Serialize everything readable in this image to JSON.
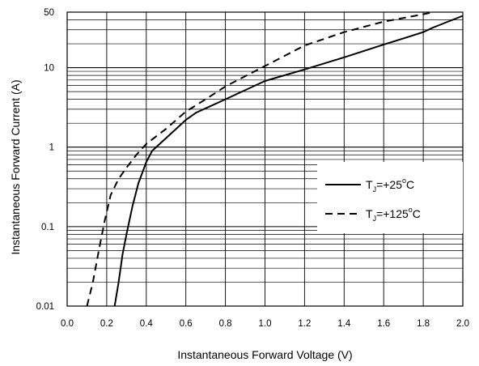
{
  "chart_data": {
    "type": "line",
    "xlabel": "Instantaneous Forward Voltage (V)",
    "ylabel": "Instantaneous Forward Current (A)",
    "xlim": [
      0.0,
      2.0
    ],
    "ylim": [
      0.01,
      50
    ],
    "yscale": "log",
    "grid": true,
    "legend_position": "right",
    "x_ticks": [
      "0.0",
      "0.2",
      "0.4",
      "0.6",
      "0.8",
      "1.0",
      "1.2",
      "1.4",
      "1.6",
      "1.8",
      "2.0"
    ],
    "y_ticks": [
      {
        "value": 0.01,
        "label": "0.01"
      },
      {
        "value": 0.1,
        "label": "0.1"
      },
      {
        "value": 1,
        "label": "1"
      },
      {
        "value": 10,
        "label": "10"
      },
      {
        "value": 50,
        "label": "50"
      }
    ],
    "series": [
      {
        "name": "TJ=+25°C",
        "legend": {
          "main": "T",
          "sub": "J",
          "mid": "=+25",
          "sup": "o",
          "end": "C"
        },
        "style": "solid",
        "color": "#000000",
        "x": [
          0.24,
          0.26,
          0.28,
          0.3,
          0.33,
          0.36,
          0.4,
          0.43,
          0.5,
          0.6,
          0.65,
          0.8,
          1.0,
          1.2,
          1.4,
          1.6,
          1.8,
          1.85,
          2.0
        ],
        "y": [
          0.01,
          0.02,
          0.045,
          0.08,
          0.18,
          0.35,
          0.65,
          0.9,
          1.3,
          2.2,
          2.7,
          4.0,
          6.8,
          9.5,
          13.5,
          19.5,
          28.0,
          32.0,
          45.0
        ]
      },
      {
        "name": "TJ=+125°C",
        "legend": {
          "main": "T",
          "sub": "J",
          "mid": "=+125",
          "sup": "o",
          "end": "C"
        },
        "style": "dashed",
        "color": "#000000",
        "x": [
          0.1,
          0.13,
          0.16,
          0.19,
          0.22,
          0.26,
          0.3,
          0.35,
          0.4,
          0.5,
          0.6,
          0.7,
          0.8,
          1.0,
          1.2,
          1.4,
          1.6,
          1.8,
          1.85
        ],
        "y": [
          0.01,
          0.02,
          0.05,
          0.12,
          0.25,
          0.4,
          0.55,
          0.8,
          1.1,
          1.7,
          2.8,
          4.0,
          5.8,
          10.5,
          19.0,
          28.0,
          38.0,
          47.0,
          50.0
        ]
      }
    ]
  }
}
